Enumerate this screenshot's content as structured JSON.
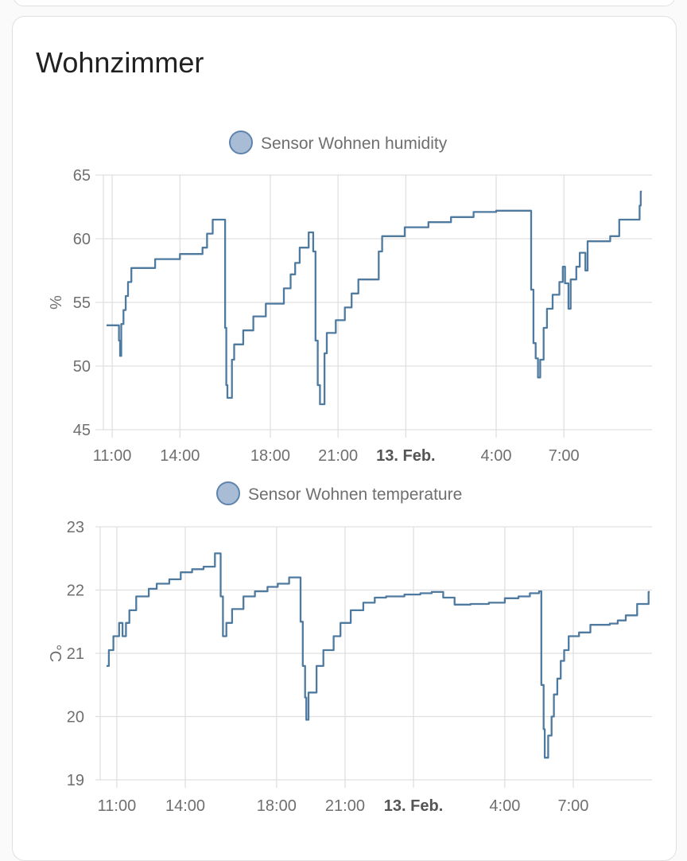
{
  "card": {
    "title": "Wohnzimmer"
  },
  "colors": {
    "line": "#4f7aa0",
    "legend_fill": "#a9bcd6",
    "legend_stroke": "#5e83ad",
    "grid": "#e0e0e0",
    "text": "#6f6f6f"
  },
  "chart_data": [
    {
      "type": "line",
      "title": "",
      "ylabel": "%",
      "ylim": [
        45,
        65
      ],
      "yticks": [
        45,
        50,
        55,
        60,
        65
      ],
      "xlim": [
        10.75,
        34.9
      ],
      "xticks": [
        {
          "t": 11,
          "label": "11:00",
          "bold": false
        },
        {
          "t": 14,
          "label": "14:00",
          "bold": false
        },
        {
          "t": 18,
          "label": "18:00",
          "bold": false
        },
        {
          "t": 21,
          "label": "21:00",
          "bold": false
        },
        {
          "t": 24,
          "label": "13. Feb.",
          "bold": true
        },
        {
          "t": 28,
          "label": "4:00",
          "bold": false
        },
        {
          "t": 31,
          "label": "7:00",
          "bold": false
        }
      ],
      "series": [
        {
          "name": "Sensor Wohnen humidity",
          "step": true,
          "points": [
            [
              10.75,
              53.2
            ],
            [
              11.2,
              53.2
            ],
            [
              11.3,
              52.0
            ],
            [
              11.35,
              50.8
            ],
            [
              11.4,
              53.3
            ],
            [
              11.5,
              54.4
            ],
            [
              11.6,
              55.5
            ],
            [
              11.7,
              56.6
            ],
            [
              11.85,
              57.7
            ],
            [
              12.9,
              58.4
            ],
            [
              14.0,
              58.8
            ],
            [
              15.0,
              59.3
            ],
            [
              15.2,
              60.4
            ],
            [
              15.45,
              61.5
            ],
            [
              15.9,
              61.5
            ],
            [
              16.0,
              53.0
            ],
            [
              16.05,
              48.5
            ],
            [
              16.1,
              47.5
            ],
            [
              16.3,
              50.5
            ],
            [
              16.4,
              51.7
            ],
            [
              16.8,
              52.8
            ],
            [
              17.25,
              53.9
            ],
            [
              17.8,
              54.9
            ],
            [
              18.6,
              56.1
            ],
            [
              18.9,
              57.2
            ],
            [
              19.1,
              58.1
            ],
            [
              19.3,
              59.3
            ],
            [
              19.7,
              60.5
            ],
            [
              19.9,
              59.0
            ],
            [
              20.0,
              52.0
            ],
            [
              20.1,
              48.5
            ],
            [
              20.2,
              47.0
            ],
            [
              20.4,
              51.0
            ],
            [
              20.5,
              52.6
            ],
            [
              20.9,
              53.6
            ],
            [
              21.3,
              54.6
            ],
            [
              21.6,
              55.7
            ],
            [
              21.9,
              56.8
            ],
            [
              22.8,
              59.0
            ],
            [
              22.95,
              60.2
            ],
            [
              23.95,
              60.9
            ],
            [
              25.0,
              61.3
            ],
            [
              26.0,
              61.7
            ],
            [
              27.0,
              62.1
            ],
            [
              28.0,
              62.2
            ],
            [
              29.5,
              62.2
            ],
            [
              29.55,
              56.0
            ],
            [
              29.65,
              51.8
            ],
            [
              29.75,
              50.6
            ],
            [
              29.85,
              49.1
            ],
            [
              29.95,
              50.5
            ],
            [
              30.1,
              53.0
            ],
            [
              30.25,
              54.5
            ],
            [
              30.5,
              55.6
            ],
            [
              30.8,
              56.6
            ],
            [
              30.95,
              57.8
            ],
            [
              31.05,
              56.5
            ],
            [
              31.2,
              54.5
            ],
            [
              31.3,
              56.8
            ],
            [
              31.55,
              57.8
            ],
            [
              31.7,
              58.9
            ],
            [
              31.95,
              57.5
            ],
            [
              32.05,
              59.8
            ],
            [
              33.05,
              60.2
            ],
            [
              33.45,
              61.5
            ],
            [
              34.3,
              61.5
            ],
            [
              34.35,
              62.6
            ],
            [
              34.4,
              63.7
            ],
            [
              34.45,
              63.7
            ]
          ]
        }
      ]
    },
    {
      "type": "line",
      "title": "",
      "ylabel": "°C",
      "ylim": [
        19,
        23
      ],
      "yticks": [
        19,
        20,
        21,
        22,
        23
      ],
      "xlim": [
        10.55,
        34.45
      ],
      "xticks": [
        {
          "t": 11,
          "label": "11:00",
          "bold": false
        },
        {
          "t": 14,
          "label": "14:00",
          "bold": false
        },
        {
          "t": 18,
          "label": "18:00",
          "bold": false
        },
        {
          "t": 21,
          "label": "21:00",
          "bold": false
        },
        {
          "t": 24,
          "label": "13. Feb.",
          "bold": true
        },
        {
          "t": 28,
          "label": "4:00",
          "bold": false
        },
        {
          "t": 31,
          "label": "7:00",
          "bold": false
        }
      ],
      "series": [
        {
          "name": "Sensor Wohnen temperature",
          "step": true,
          "points": [
            [
              10.55,
              20.8
            ],
            [
              10.65,
              21.05
            ],
            [
              10.85,
              21.27
            ],
            [
              11.1,
              21.48
            ],
            [
              11.25,
              21.27
            ],
            [
              11.4,
              21.48
            ],
            [
              11.55,
              21.68
            ],
            [
              11.85,
              21.9
            ],
            [
              12.4,
              22.02
            ],
            [
              12.75,
              22.1
            ],
            [
              13.3,
              22.17
            ],
            [
              13.8,
              22.28
            ],
            [
              14.3,
              22.33
            ],
            [
              14.8,
              22.37
            ],
            [
              15.3,
              22.58
            ],
            [
              15.55,
              21.9
            ],
            [
              15.65,
              21.27
            ],
            [
              15.8,
              21.48
            ],
            [
              16.05,
              21.7
            ],
            [
              16.55,
              21.9
            ],
            [
              17.05,
              21.98
            ],
            [
              17.6,
              22.05
            ],
            [
              18.05,
              22.1
            ],
            [
              18.55,
              22.2
            ],
            [
              19.05,
              21.5
            ],
            [
              19.15,
              20.8
            ],
            [
              19.25,
              20.3
            ],
            [
              19.3,
              19.95
            ],
            [
              19.4,
              20.38
            ],
            [
              19.75,
              20.8
            ],
            [
              20.05,
              21.05
            ],
            [
              20.5,
              21.27
            ],
            [
              20.8,
              21.48
            ],
            [
              21.25,
              21.68
            ],
            [
              21.8,
              21.8
            ],
            [
              22.3,
              21.88
            ],
            [
              22.8,
              21.9
            ],
            [
              23.6,
              21.93
            ],
            [
              24.3,
              21.95
            ],
            [
              24.8,
              21.97
            ],
            [
              25.3,
              21.88
            ],
            [
              25.8,
              21.77
            ],
            [
              26.5,
              21.78
            ],
            [
              27.3,
              21.8
            ],
            [
              28.0,
              21.87
            ],
            [
              28.6,
              21.9
            ],
            [
              29.1,
              21.95
            ],
            [
              29.5,
              21.98
            ],
            [
              29.6,
              20.5
            ],
            [
              29.7,
              19.8
            ],
            [
              29.75,
              19.35
            ],
            [
              29.9,
              19.7
            ],
            [
              30.05,
              20.0
            ],
            [
              30.15,
              20.35
            ],
            [
              30.3,
              20.6
            ],
            [
              30.45,
              20.88
            ],
            [
              30.6,
              21.05
            ],
            [
              30.8,
              21.27
            ],
            [
              31.25,
              21.33
            ],
            [
              31.75,
              21.45
            ],
            [
              32.6,
              21.47
            ],
            [
              32.95,
              21.52
            ],
            [
              33.3,
              21.6
            ],
            [
              33.8,
              21.78
            ],
            [
              34.25,
              21.78
            ],
            [
              34.3,
              21.97
            ],
            [
              34.35,
              21.97
            ]
          ]
        }
      ]
    }
  ]
}
